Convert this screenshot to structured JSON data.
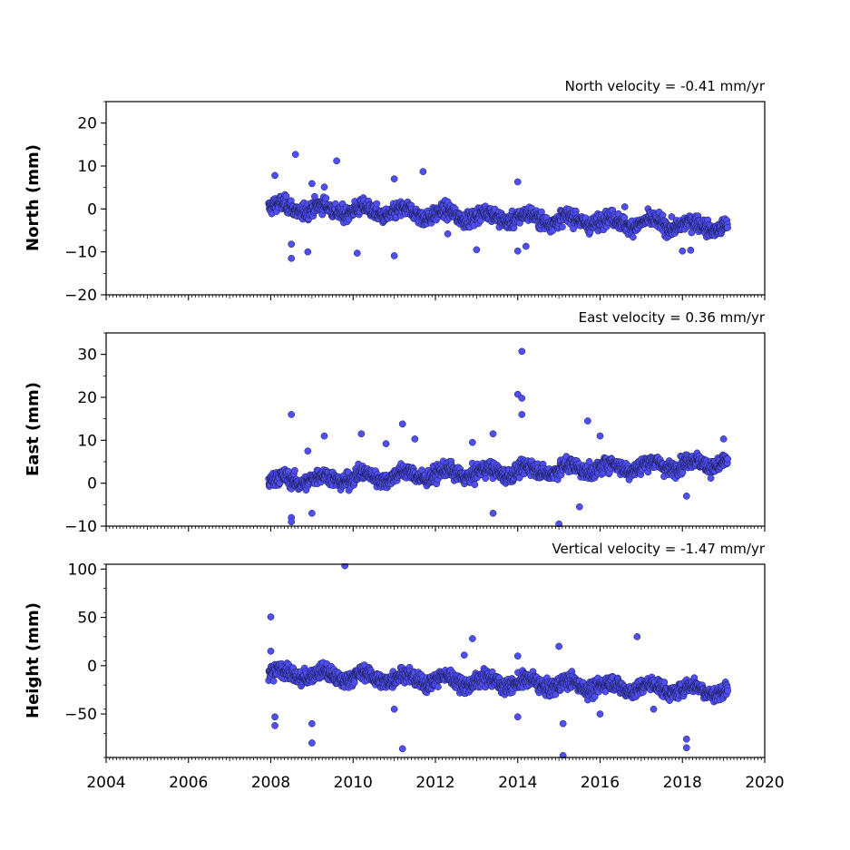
{
  "chart_data": [
    {
      "type": "scatter",
      "title": "North velocity = -0.41 mm/yr",
      "ylabel": "North (mm)",
      "xlim": [
        2004,
        2020
      ],
      "ylim": [
        -20,
        25
      ],
      "yticks": [
        -20,
        -10,
        0,
        10,
        20
      ],
      "xticks": [
        2004,
        2006,
        2008,
        2010,
        2012,
        2014,
        2016,
        2018,
        2020
      ],
      "marker_color": "#4f4ff5",
      "data_span": [
        2007.95,
        2019.1
      ],
      "trend": {
        "start": 0.5,
        "end": -4.2
      },
      "points": [
        [
          2008.1,
          7.8
        ],
        [
          2008.5,
          -8.2
        ],
        [
          2008.5,
          -11.5
        ],
        [
          2008.6,
          12.7
        ],
        [
          2008.9,
          -10.0
        ],
        [
          2009.0,
          5.9
        ],
        [
          2009.3,
          5.1
        ],
        [
          2009.6,
          11.2
        ],
        [
          2010.1,
          -10.3
        ],
        [
          2011.0,
          7.0
        ],
        [
          2011.0,
          -10.9
        ],
        [
          2011.7,
          8.7
        ],
        [
          2013.0,
          -9.5
        ],
        [
          2014.0,
          6.3
        ],
        [
          2014.0,
          -9.8
        ],
        [
          2014.2,
          -8.7
        ],
        [
          2018.0,
          -9.8
        ],
        [
          2018.2,
          -9.6
        ],
        [
          2016.6,
          0.5
        ],
        [
          2012.3,
          -5.8
        ]
      ]
    },
    {
      "type": "scatter",
      "title": "East velocity = 0.36 mm/yr",
      "ylabel": "East (mm)",
      "xlim": [
        2004,
        2020
      ],
      "ylim": [
        -10,
        35
      ],
      "yticks": [
        -10,
        0,
        10,
        20,
        30
      ],
      "xticks": [
        2004,
        2006,
        2008,
        2010,
        2012,
        2014,
        2016,
        2018,
        2020
      ],
      "marker_color": "#4f4ff5",
      "data_span": [
        2007.95,
        2019.1
      ],
      "trend": {
        "start": 0.5,
        "end": 4.8
      },
      "points": [
        [
          2008.5,
          16.0
        ],
        [
          2008.5,
          -8.0
        ],
        [
          2008.5,
          -9.0
        ],
        [
          2008.9,
          7.5
        ],
        [
          2009.0,
          -7.0
        ],
        [
          2009.3,
          11.0
        ],
        [
          2010.2,
          11.5
        ],
        [
          2010.8,
          9.2
        ],
        [
          2011.2,
          13.8
        ],
        [
          2011.5,
          10.3
        ],
        [
          2012.9,
          9.5
        ],
        [
          2013.4,
          11.5
        ],
        [
          2013.4,
          -7.0
        ],
        [
          2014.0,
          20.7
        ],
        [
          2014.1,
          30.7
        ],
        [
          2014.1,
          19.8
        ],
        [
          2014.1,
          16.0
        ],
        [
          2015.0,
          -9.5
        ],
        [
          2015.7,
          14.5
        ],
        [
          2016.0,
          11.0
        ],
        [
          2018.1,
          -3.0
        ],
        [
          2019.0,
          10.3
        ],
        [
          2015.5,
          -5.5
        ]
      ]
    },
    {
      "type": "scatter",
      "title": "Vertical velocity = -1.47 mm/yr",
      "ylabel": "Height (mm)",
      "xlim": [
        2004,
        2020
      ],
      "ylim": [
        -95,
        105
      ],
      "yticks": [
        -50,
        0,
        50,
        100
      ],
      "xticks": [
        2004,
        2006,
        2008,
        2010,
        2012,
        2014,
        2016,
        2018,
        2020
      ],
      "marker_color": "#4f4ff5",
      "data_span": [
        2007.95,
        2019.1
      ],
      "trend": {
        "start": -8,
        "end": -26
      },
      "points": [
        [
          2008.0,
          50.5
        ],
        [
          2008.0,
          15.0
        ],
        [
          2008.1,
          -62.0
        ],
        [
          2008.1,
          -53.0
        ],
        [
          2009.0,
          -80.0
        ],
        [
          2009.0,
          -60.0
        ],
        [
          2009.8,
          103.5
        ],
        [
          2011.0,
          -45.0
        ],
        [
          2011.2,
          -86.0
        ],
        [
          2012.7,
          11.0
        ],
        [
          2012.9,
          28.0
        ],
        [
          2014.0,
          -53.0
        ],
        [
          2014.0,
          10.0
        ],
        [
          2015.0,
          20.0
        ],
        [
          2015.1,
          -60.0
        ],
        [
          2015.1,
          -93.0
        ],
        [
          2016.0,
          -50.0
        ],
        [
          2016.9,
          30.0
        ],
        [
          2018.1,
          -76.0
        ],
        [
          2018.1,
          -85.0
        ],
        [
          2017.3,
          -45.0
        ]
      ]
    }
  ]
}
